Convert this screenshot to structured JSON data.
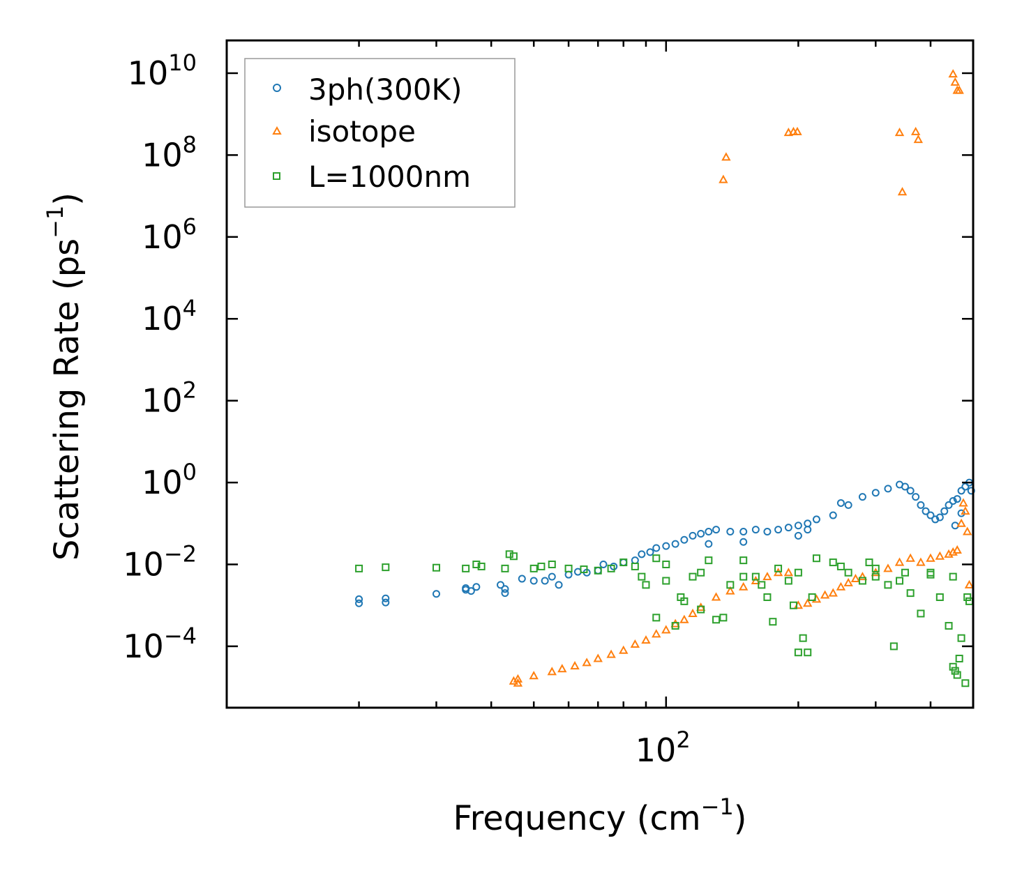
{
  "chart_data": {
    "type": "scatter",
    "xscale": "log",
    "yscale": "log",
    "xlim": [
      10,
      500
    ],
    "ylim_log10": [
      -5.5,
      10.8
    ],
    "xlabel": {
      "main": "Frequency (cm",
      "sup": "−1",
      "tail": ")"
    },
    "ylabel": {
      "main": "Scattering Rate (ps",
      "sup": "−1",
      "tail": ")"
    },
    "x_ticks": [
      {
        "base": "10",
        "exp": "2",
        "value": 100
      }
    ],
    "y_ticks": [
      {
        "base": "10",
        "exp": "10",
        "value": 10
      },
      {
        "base": "10",
        "exp": "8",
        "value": 8
      },
      {
        "base": "10",
        "exp": "6",
        "value": 6
      },
      {
        "base": "10",
        "exp": "4",
        "value": 4
      },
      {
        "base": "10",
        "exp": "2",
        "value": 2
      },
      {
        "base": "10",
        "exp": "0",
        "value": 0
      },
      {
        "base": "10",
        "exp": "−2",
        "value": -2
      },
      {
        "base": "10",
        "exp": "−4",
        "value": -4
      }
    ],
    "legend_position": "top-left",
    "series": [
      {
        "name": "3ph(300K)",
        "marker": "circle",
        "color": "#1f77b4",
        "points": [
          [
            20,
            -2.85
          ],
          [
            20,
            -2.95
          ],
          [
            23,
            -2.83
          ],
          [
            23,
            -2.93
          ],
          [
            30,
            -2.72
          ],
          [
            35,
            -2.58
          ],
          [
            35,
            -2.62
          ],
          [
            36,
            -2.65
          ],
          [
            37,
            -2.55
          ],
          [
            42,
            -2.5
          ],
          [
            43,
            -2.6
          ],
          [
            43,
            -2.7
          ],
          [
            47,
            -2.35
          ],
          [
            50,
            -2.4
          ],
          [
            53,
            -2.4
          ],
          [
            55,
            -2.3
          ],
          [
            57,
            -2.5
          ],
          [
            60,
            -2.25
          ],
          [
            63,
            -2.18
          ],
          [
            66,
            -2.2
          ],
          [
            70,
            -2.15
          ],
          [
            72,
            -2.0
          ],
          [
            76,
            -2.05
          ],
          [
            80,
            -1.95
          ],
          [
            85,
            -1.9
          ],
          [
            88,
            -1.75
          ],
          [
            92,
            -1.7
          ],
          [
            95,
            -1.6
          ],
          [
            100,
            -1.55
          ],
          [
            105,
            -1.5
          ],
          [
            110,
            -1.4
          ],
          [
            115,
            -1.3
          ],
          [
            120,
            -1.25
          ],
          [
            125,
            -1.2
          ],
          [
            130,
            -1.15
          ],
          [
            140,
            -1.2
          ],
          [
            150,
            -1.2
          ],
          [
            160,
            -1.15
          ],
          [
            170,
            -1.2
          ],
          [
            180,
            -1.15
          ],
          [
            190,
            -1.1
          ],
          [
            200,
            -1.05
          ],
          [
            210,
            -1.0
          ],
          [
            220,
            -0.9
          ],
          [
            240,
            -0.8
          ],
          [
            250,
            -0.5
          ],
          [
            260,
            -0.55
          ],
          [
            280,
            -0.35
          ],
          [
            300,
            -0.25
          ],
          [
            320,
            -0.15
          ],
          [
            340,
            -0.05
          ],
          [
            350,
            -0.1
          ],
          [
            360,
            -0.2
          ],
          [
            370,
            -0.35
          ],
          [
            380,
            -0.55
          ],
          [
            390,
            -0.7
          ],
          [
            400,
            -0.8
          ],
          [
            410,
            -0.9
          ],
          [
            420,
            -0.85
          ],
          [
            430,
            -0.7
          ],
          [
            440,
            -0.55
          ],
          [
            450,
            -0.45
          ],
          [
            460,
            -0.4
          ],
          [
            470,
            -0.2
          ],
          [
            480,
            -0.1
          ],
          [
            490,
            0.0
          ],
          [
            495,
            -0.2
          ],
          [
            455,
            -1.05
          ],
          [
            470,
            -0.75
          ],
          [
            125,
            -1.5
          ],
          [
            150,
            -1.45
          ],
          [
            200,
            -1.3
          ],
          [
            210,
            -1.15
          ]
        ]
      },
      {
        "name": "isotope",
        "marker": "triangle",
        "color": "#ff7f0e",
        "points": [
          [
            45,
            -4.85
          ],
          [
            46,
            -4.9
          ],
          [
            46,
            -4.8
          ],
          [
            50,
            -4.72
          ],
          [
            55,
            -4.62
          ],
          [
            58,
            -4.55
          ],
          [
            62,
            -4.48
          ],
          [
            66,
            -4.4
          ],
          [
            70,
            -4.3
          ],
          [
            75,
            -4.2
          ],
          [
            80,
            -4.1
          ],
          [
            85,
            -3.95
          ],
          [
            90,
            -3.85
          ],
          [
            95,
            -3.7
          ],
          [
            100,
            -3.6
          ],
          [
            105,
            -3.45
          ],
          [
            110,
            -3.35
          ],
          [
            115,
            -3.2
          ],
          [
            120,
            -3.05
          ],
          [
            130,
            -2.8
          ],
          [
            140,
            -2.65
          ],
          [
            150,
            -2.55
          ],
          [
            160,
            -2.4
          ],
          [
            170,
            -2.3
          ],
          [
            180,
            -2.2
          ],
          [
            190,
            -2.2
          ],
          [
            200,
            -3.0
          ],
          [
            210,
            -2.95
          ],
          [
            220,
            -2.85
          ],
          [
            230,
            -2.75
          ],
          [
            240,
            -2.7
          ],
          [
            250,
            -2.55
          ],
          [
            260,
            -2.45
          ],
          [
            270,
            -2.35
          ],
          [
            280,
            -2.3
          ],
          [
            300,
            -2.2
          ],
          [
            320,
            -2.1
          ],
          [
            340,
            -1.95
          ],
          [
            360,
            -1.85
          ],
          [
            380,
            -1.95
          ],
          [
            400,
            -1.85
          ],
          [
            420,
            -1.8
          ],
          [
            440,
            -1.75
          ],
          [
            450,
            -1.7
          ],
          [
            460,
            -1.65
          ],
          [
            470,
            -1.0
          ],
          [
            475,
            -0.5
          ],
          [
            480,
            -0.7
          ],
          [
            485,
            -1.2
          ],
          [
            490,
            -2.5
          ],
          [
            135,
            7.4
          ],
          [
            137,
            7.95
          ],
          [
            190,
            8.55
          ],
          [
            195,
            8.57
          ],
          [
            199,
            8.57
          ],
          [
            340,
            8.55
          ],
          [
            345,
            7.1
          ],
          [
            370,
            8.57
          ],
          [
            375,
            8.38
          ],
          [
            450,
            9.98
          ],
          [
            455,
            9.78
          ],
          [
            460,
            9.58
          ],
          [
            465,
            9.58
          ]
        ]
      },
      {
        "name": "L=1000nm",
        "marker": "square",
        "color": "#2ca02c",
        "points": [
          [
            20,
            -2.1
          ],
          [
            23,
            -2.07
          ],
          [
            30,
            -2.08
          ],
          [
            35,
            -2.1
          ],
          [
            37,
            -2.0
          ],
          [
            38,
            -2.05
          ],
          [
            43,
            -2.1
          ],
          [
            44,
            -1.75
          ],
          [
            45,
            -1.8
          ],
          [
            50,
            -2.1
          ],
          [
            52,
            -2.05
          ],
          [
            55,
            -2.0
          ],
          [
            60,
            -2.1
          ],
          [
            65,
            -2.12
          ],
          [
            70,
            -2.15
          ],
          [
            75,
            -2.1
          ],
          [
            80,
            -1.95
          ],
          [
            85,
            -2.05
          ],
          [
            88,
            -2.3
          ],
          [
            90,
            -2.5
          ],
          [
            95,
            -1.85
          ],
          [
            95,
            -3.3
          ],
          [
            100,
            -2.4
          ],
          [
            105,
            -3.5
          ],
          [
            108,
            -2.8
          ],
          [
            110,
            -2.9
          ],
          [
            115,
            -2.3
          ],
          [
            120,
            -3.1
          ],
          [
            125,
            -1.9
          ],
          [
            130,
            -3.35
          ],
          [
            135,
            -3.3
          ],
          [
            140,
            -2.5
          ],
          [
            150,
            -1.9
          ],
          [
            160,
            -2.3
          ],
          [
            165,
            -2.5
          ],
          [
            170,
            -2.8
          ],
          [
            175,
            -3.4
          ],
          [
            180,
            -2.1
          ],
          [
            190,
            -2.4
          ],
          [
            195,
            -3.0
          ],
          [
            200,
            -4.15
          ],
          [
            205,
            -3.8
          ],
          [
            210,
            -4.15
          ],
          [
            215,
            -2.8
          ],
          [
            220,
            -1.85
          ],
          [
            240,
            -1.95
          ],
          [
            260,
            -2.2
          ],
          [
            280,
            -2.4
          ],
          [
            290,
            -1.95
          ],
          [
            300,
            -2.3
          ],
          [
            320,
            -2.5
          ],
          [
            330,
            -4.0
          ],
          [
            340,
            -2.4
          ],
          [
            360,
            -2.7
          ],
          [
            380,
            -3.2
          ],
          [
            400,
            -2.2
          ],
          [
            420,
            -2.8
          ],
          [
            440,
            -3.5
          ],
          [
            450,
            -4.5
          ],
          [
            455,
            -4.6
          ],
          [
            460,
            -4.7
          ],
          [
            465,
            -4.3
          ],
          [
            470,
            -3.8
          ],
          [
            480,
            -4.9
          ],
          [
            485,
            -2.8
          ],
          [
            490,
            -2.9
          ],
          [
            200,
            -2.2
          ],
          [
            150,
            -2.3
          ],
          [
            120,
            -2.2
          ],
          [
            100,
            -2.0
          ],
          [
            250,
            -2.05
          ],
          [
            300,
            -2.1
          ],
          [
            350,
            -2.2
          ],
          [
            400,
            -2.25
          ],
          [
            450,
            -2.3
          ]
        ]
      }
    ]
  }
}
